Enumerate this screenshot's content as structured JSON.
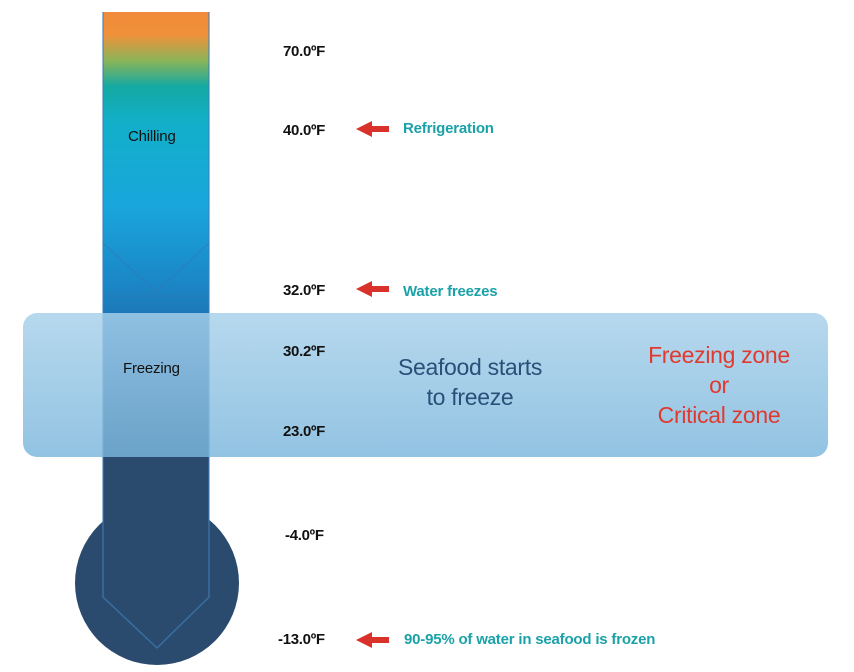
{
  "temperatures": [
    "70.0ºF",
    "40.0ºF",
    "32.0ºF",
    "30.2ºF",
    "23.0ºF",
    "-4.0ºF",
    "-13.0ºF"
  ],
  "stages": {
    "chilling": "Chilling",
    "freezing": "Freezing"
  },
  "notes": {
    "refrigeration": "Refrigeration",
    "water_freezes": "Water freezes",
    "frozen": "90-95% of water in seafood is frozen"
  },
  "zone": {
    "main_line1": "Seafood starts",
    "main_line2": "to freeze",
    "critical_line1": "Freezing zone",
    "critical_line2": "or",
    "critical_line3": "Critical zone"
  },
  "colors": {
    "hot": "#f08a3a",
    "mid": "#14a9a3",
    "cool": "#19a6dc",
    "cold": "#2a4a6e",
    "zone_band": "#8dc3e3",
    "arrow": "#d9322a",
    "note_text": "#1aa2a8",
    "critical_text": "#e03a2e"
  }
}
